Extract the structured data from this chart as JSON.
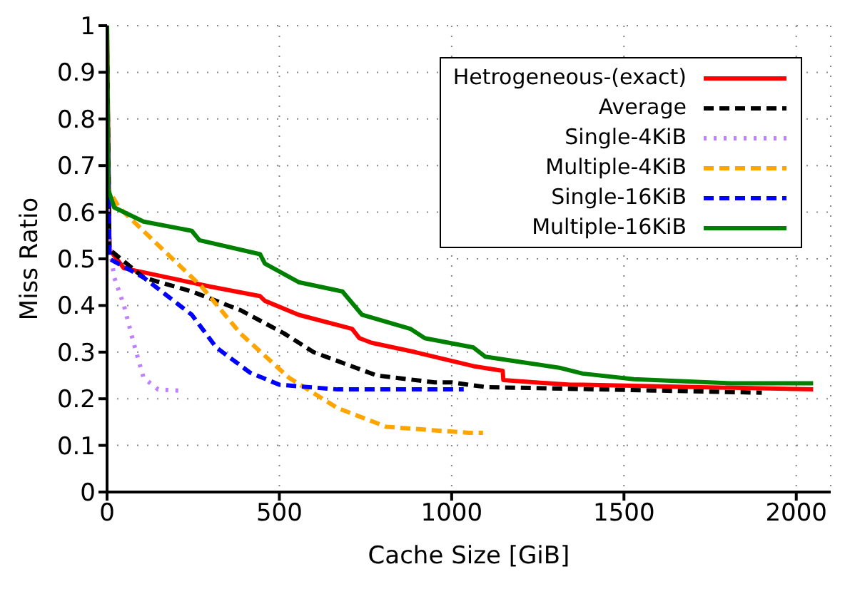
{
  "chart_data": {
    "type": "line",
    "xlabel": "Cache Size [GiB]",
    "ylabel": "Miss Ratio",
    "xlim": [
      0,
      2100
    ],
    "ylim": [
      0,
      1
    ],
    "xticks": [
      0,
      500,
      1000,
      1500,
      2000
    ],
    "yticks": [
      0,
      0.1,
      0.2,
      0.3,
      0.4,
      0.5,
      0.6,
      0.7,
      0.8,
      0.9,
      1
    ],
    "grid": true,
    "legend": "top right",
    "series": [
      {
        "name": "Hetrogeneous-(exact)",
        "color": "#ff0000",
        "line_style": "solid",
        "x": [
          0,
          7,
          49,
          176,
          303,
          444,
          458,
          556,
          711,
          732,
          768,
          894,
          1063,
          1148,
          1150,
          1344,
          1380,
          2049
        ],
        "values": [
          1,
          0.52,
          0.48,
          0.46,
          0.44,
          0.42,
          0.41,
          0.38,
          0.35,
          0.33,
          0.32,
          0.3,
          0.27,
          0.26,
          0.24,
          0.23,
          0.23,
          0.22
        ]
      },
      {
        "name": "Average",
        "color": "#000000",
        "line_style": "dashed",
        "x": [
          0,
          7,
          106,
          246,
          387,
          514,
          599,
          782,
          951,
          1000,
          1100,
          1900
        ],
        "values": [
          0.95,
          0.52,
          0.46,
          0.43,
          0.39,
          0.34,
          0.3,
          0.25,
          0.235,
          0.235,
          0.225,
          0.213
        ]
      },
      {
        "name": "Single-4KiB",
        "color": "#bf80ff",
        "line_style": "dotted",
        "x": [
          0,
          3,
          21,
          49,
          77,
          106,
          148,
          218
        ],
        "values": [
          0.8,
          0.55,
          0.46,
          0.4,
          0.32,
          0.245,
          0.22,
          0.217
        ]
      },
      {
        "name": "Multiple-4KiB",
        "color": "#ffa500",
        "line_style": "dashed",
        "x": [
          0,
          3,
          35,
          176,
          275,
          387,
          528,
          669,
          810,
          1049,
          1091
        ],
        "values": [
          1,
          0.65,
          0.61,
          0.51,
          0.44,
          0.34,
          0.245,
          0.18,
          0.14,
          0.127,
          0.127
        ]
      },
      {
        "name": "Single-16KiB",
        "color": "#0000ff",
        "line_style": "dashed",
        "x": [
          0,
          7,
          106,
          176,
          246,
          317,
          415,
          500,
          669,
          1035
        ],
        "values": [
          0.9,
          0.5,
          0.46,
          0.42,
          0.38,
          0.31,
          0.256,
          0.23,
          0.22,
          0.22
        ]
      },
      {
        "name": "Multiple-16KiB",
        "color": "#008000",
        "line_style": "solid",
        "x": [
          0,
          3,
          21,
          106,
          246,
          268,
          444,
          458,
          556,
          683,
          740,
          880,
          922,
          1063,
          1098,
          1316,
          1380,
          1528,
          1810,
          2049
        ],
        "values": [
          1,
          0.65,
          0.61,
          0.58,
          0.56,
          0.54,
          0.51,
          0.49,
          0.45,
          0.43,
          0.38,
          0.35,
          0.33,
          0.31,
          0.29,
          0.266,
          0.254,
          0.242,
          0.233,
          0.233
        ]
      }
    ]
  }
}
